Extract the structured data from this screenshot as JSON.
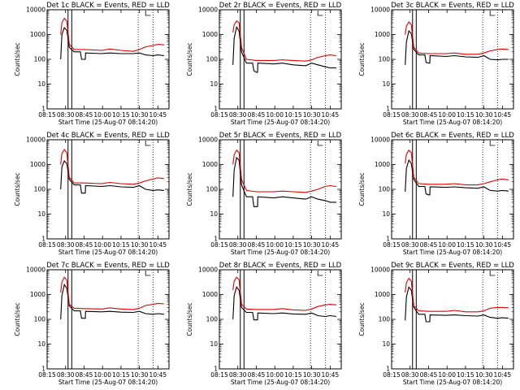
{
  "chart_data": {
    "type": "line",
    "layout": "3x3 grid of panels",
    "ylabel": "Counts/sec",
    "xlabel": "Start Time (25-Aug-07 08:14:20)",
    "y_scale": "log",
    "ylim": [
      1,
      10000
    ],
    "y_ticks": [
      "1",
      "10",
      "100",
      "1000",
      "10000"
    ],
    "xlim": [
      "08:15",
      "10:54"
    ],
    "x_ticks": [
      "08:15",
      "08:30",
      "08:45",
      "10:00",
      "10:15",
      "10:30",
      "10:45"
    ],
    "series_colors": {
      "black": "#000000",
      "red": "#e00000"
    },
    "vertical_marker_lines": {
      "solid": [
        "08:32",
        "08:35"
      ],
      "dotted": [
        "10:29",
        "10:41"
      ]
    },
    "tick_marker": "10:35",
    "panels": [
      {
        "title": "Det 1c BLACK = Events, RED = LLD",
        "series": [
          {
            "color": "black",
            "x": [
              "08:26",
              "08:27",
              "08:29",
              "08:31",
              "08:33",
              "08:37",
              "08:42",
              "08:43",
              "08:45",
              "08:50",
              "08:51",
              "09:56",
              "10:06",
              "10:15",
              "10:25",
              "10:30",
              "10:35",
              "10:41",
              "10:45",
              "10:50"
            ],
            "values": [
              100,
              1000,
              1900,
              1500,
              300,
              200,
              200,
              100,
              100,
              100,
              180,
              170,
              180,
              170,
              170,
              180,
              150,
              140,
              150,
              140
            ]
          },
          {
            "color": "red",
            "x": [
              "08:26",
              "08:27",
              "08:29",
              "08:31",
              "08:33",
              "08:37",
              "08:45",
              "09:56",
              "10:06",
              "10:15",
              "10:25",
              "10:30",
              "10:35",
              "10:41",
              "10:45",
              "10:50"
            ],
            "values": [
              1000,
              3000,
              4500,
              3500,
              400,
              250,
              250,
              230,
              260,
              230,
              210,
              250,
              320,
              360,
              400,
              380
            ]
          }
        ]
      },
      {
        "title": "Det 2r BLACK = Events, RED = LLD",
        "series": [
          {
            "color": "black",
            "x": [
              "08:26",
              "08:27",
              "08:29",
              "08:31",
              "08:33",
              "08:37",
              "08:42",
              "08:43",
              "08:45",
              "08:50",
              "08:51",
              "09:56",
              "10:06",
              "10:15",
              "10:25",
              "10:30",
              "10:35",
              "10:41",
              "10:45",
              "10:50"
            ],
            "values": [
              60,
              700,
              2000,
              1400,
              200,
              70,
              70,
              35,
              30,
              30,
              70,
              65,
              70,
              60,
              55,
              70,
              60,
              50,
              45,
              45
            ]
          },
          {
            "color": "red",
            "x": [
              "08:26",
              "08:27",
              "08:29",
              "08:31",
              "08:33",
              "08:37",
              "08:45",
              "09:56",
              "10:06",
              "10:15",
              "10:25",
              "10:30",
              "10:35",
              "10:41",
              "10:45",
              "10:50"
            ],
            "values": [
              1200,
              2500,
              3500,
              3000,
              300,
              100,
              90,
              90,
              95,
              90,
              85,
              95,
              120,
              140,
              150,
              140
            ]
          }
        ]
      },
      {
        "title": "Det 3c BLACK = Events, RED = LLD",
        "series": [
          {
            "color": "black",
            "x": [
              "08:26",
              "08:27",
              "08:29",
              "08:31",
              "08:33",
              "08:37",
              "08:42",
              "08:43",
              "08:45",
              "08:50",
              "08:51",
              "09:56",
              "10:06",
              "10:15",
              "10:25",
              "10:30",
              "10:35",
              "10:41",
              "10:45",
              "10:50"
            ],
            "values": [
              60,
              500,
              1400,
              1100,
              250,
              150,
              150,
              75,
              70,
              70,
              140,
              130,
              140,
              125,
              120,
              140,
              100,
              95,
              100,
              100
            ]
          },
          {
            "color": "red",
            "x": [
              "08:26",
              "08:27",
              "08:29",
              "08:31",
              "08:33",
              "08:37",
              "08:45",
              "09:56",
              "10:06",
              "10:15",
              "10:25",
              "10:30",
              "10:35",
              "10:41",
              "10:45",
              "10:50"
            ],
            "values": [
              1000,
              2200,
              3200,
              2500,
              300,
              180,
              170,
              170,
              180,
              160,
              160,
              180,
              220,
              250,
              260,
              250
            ]
          }
        ]
      },
      {
        "title": "Det 4c BLACK = Events, RED = LLD",
        "series": [
          {
            "color": "black",
            "x": [
              "08:26",
              "08:27",
              "08:29",
              "08:31",
              "08:33",
              "08:37",
              "08:42",
              "08:43",
              "08:45",
              "08:50",
              "08:51",
              "09:56",
              "10:06",
              "10:15",
              "10:25",
              "10:30",
              "10:35",
              "10:41",
              "10:45",
              "10:50"
            ],
            "values": [
              100,
              800,
              1400,
              1100,
              250,
              150,
              150,
              70,
              70,
              70,
              140,
              130,
              140,
              125,
              120,
              140,
              100,
              90,
              95,
              90
            ]
          },
          {
            "color": "red",
            "x": [
              "08:26",
              "08:27",
              "08:29",
              "08:31",
              "08:33",
              "08:37",
              "08:45",
              "09:56",
              "10:06",
              "10:15",
              "10:25",
              "10:30",
              "10:35",
              "10:41",
              "10:45",
              "10:50"
            ],
            "values": [
              1000,
              2800,
              4000,
              3000,
              300,
              180,
              180,
              170,
              190,
              170,
              160,
              180,
              220,
              260,
              290,
              270
            ]
          }
        ]
      },
      {
        "title": "Det 5r BLACK = Events, RED = LLD",
        "series": [
          {
            "color": "black",
            "x": [
              "08:26",
              "08:27",
              "08:29",
              "08:31",
              "08:33",
              "08:37",
              "08:42",
              "08:43",
              "08:45",
              "08:50",
              "08:51",
              "09:56",
              "10:06",
              "10:15",
              "10:25",
              "10:30",
              "10:35",
              "10:41",
              "10:45",
              "10:50"
            ],
            "values": [
              50,
              600,
              1900,
              1500,
              150,
              50,
              50,
              20,
              20,
              20,
              50,
              45,
              50,
              45,
              40,
              50,
              40,
              35,
              30,
              30
            ]
          },
          {
            "color": "red",
            "x": [
              "08:26",
              "08:27",
              "08:29",
              "08:31",
              "08:33",
              "08:37",
              "08:45",
              "09:56",
              "10:06",
              "10:15",
              "10:25",
              "10:30",
              "10:35",
              "10:41",
              "10:45",
              "10:50"
            ],
            "values": [
              1000,
              2500,
              3800,
              3000,
              250,
              90,
              80,
              80,
              85,
              80,
              75,
              85,
              100,
              130,
              140,
              130
            ]
          }
        ]
      },
      {
        "title": "Det 6c BLACK = Events, RED = LLD",
        "series": [
          {
            "color": "black",
            "x": [
              "08:26",
              "08:27",
              "08:29",
              "08:31",
              "08:33",
              "08:37",
              "08:42",
              "08:43",
              "08:45",
              "08:50",
              "08:51",
              "09:56",
              "10:06",
              "10:15",
              "10:25",
              "10:30",
              "10:35",
              "10:41",
              "10:45",
              "10:50"
            ],
            "values": [
              80,
              700,
              1500,
              1100,
              250,
              130,
              130,
              65,
              60,
              60,
              125,
              120,
              125,
              115,
              110,
              125,
              90,
              85,
              90,
              85
            ]
          },
          {
            "color": "red",
            "x": [
              "08:26",
              "08:27",
              "08:29",
              "08:31",
              "08:33",
              "08:37",
              "08:45",
              "09:56",
              "10:06",
              "10:15",
              "10:25",
              "10:30",
              "10:35",
              "10:41",
              "10:45",
              "10:50"
            ],
            "values": [
              1100,
              2600,
              3800,
              3000,
              300,
              170,
              160,
              160,
              170,
              150,
              150,
              170,
              200,
              240,
              260,
              240
            ]
          }
        ]
      },
      {
        "title": "Det 7c BLACK = Events, RED = LLD",
        "series": [
          {
            "color": "black",
            "x": [
              "08:26",
              "08:27",
              "08:29",
              "08:31",
              "08:33",
              "08:37",
              "08:42",
              "08:43",
              "08:45",
              "08:50",
              "08:51",
              "09:56",
              "10:06",
              "10:15",
              "10:25",
              "10:30",
              "10:35",
              "10:41",
              "10:45",
              "10:50"
            ],
            "values": [
              100,
              900,
              2500,
              1800,
              350,
              220,
              220,
              110,
              110,
              110,
              210,
              200,
              210,
              195,
              190,
              210,
              170,
              160,
              170,
              160
            ]
          },
          {
            "color": "red",
            "x": [
              "08:26",
              "08:27",
              "08:29",
              "08:31",
              "08:33",
              "08:37",
              "08:45",
              "09:56",
              "10:06",
              "10:15",
              "10:25",
              "10:30",
              "10:35",
              "10:41",
              "10:45",
              "10:50"
            ],
            "values": [
              1200,
              3200,
              5000,
              3800,
              400,
              280,
              270,
              260,
              290,
              260,
              250,
              280,
              360,
              400,
              440,
              420
            ]
          }
        ]
      },
      {
        "title": "Det 8r BLACK = Events, RED = LLD",
        "series": [
          {
            "color": "black",
            "x": [
              "08:26",
              "08:27",
              "08:29",
              "08:31",
              "08:33",
              "08:37",
              "08:42",
              "08:43",
              "08:45",
              "08:50",
              "08:51",
              "09:56",
              "10:06",
              "10:15",
              "10:25",
              "10:30",
              "10:35",
              "10:41",
              "10:45",
              "10:50"
            ],
            "values": [
              100,
              900,
              2000,
              1500,
              300,
              190,
              190,
              95,
              95,
              95,
              180,
              170,
              180,
              165,
              160,
              180,
              140,
              130,
              140,
              130
            ]
          },
          {
            "color": "red",
            "x": [
              "08:26",
              "08:27",
              "08:29",
              "08:31",
              "08:33",
              "08:37",
              "08:45",
              "09:56",
              "10:06",
              "10:15",
              "10:25",
              "10:30",
              "10:35",
              "10:41",
              "10:45",
              "10:50"
            ],
            "values": [
              1500,
              3500,
              5000,
              4000,
              400,
              260,
              250,
              250,
              270,
              240,
              230,
              260,
              330,
              380,
              400,
              380
            ]
          }
        ]
      },
      {
        "title": "Det 9c BLACK = Events, RED = LLD",
        "series": [
          {
            "color": "black",
            "x": [
              "08:26",
              "08:27",
              "08:29",
              "08:31",
              "08:33",
              "08:37",
              "08:42",
              "08:43",
              "08:45",
              "08:50",
              "08:51",
              "09:56",
              "10:06",
              "10:15",
              "10:25",
              "10:30",
              "10:35",
              "10:41",
              "10:45",
              "10:50"
            ],
            "values": [
              90,
              800,
              2000,
              1500,
              300,
              160,
              160,
              80,
              80,
              80,
              150,
              145,
              150,
              140,
              135,
              150,
              120,
              110,
              115,
              110
            ]
          },
          {
            "color": "red",
            "x": [
              "08:26",
              "08:27",
              "08:29",
              "08:31",
              "08:33",
              "08:37",
              "08:45",
              "09:56",
              "10:06",
              "10:15",
              "10:25",
              "10:30",
              "10:35",
              "10:41",
              "10:45",
              "10:50"
            ],
            "values": [
              1200,
              3000,
              4500,
              3500,
              350,
              220,
              210,
              210,
              230,
              200,
              200,
              220,
              280,
              300,
              300,
              290
            ]
          }
        ]
      }
    ]
  }
}
